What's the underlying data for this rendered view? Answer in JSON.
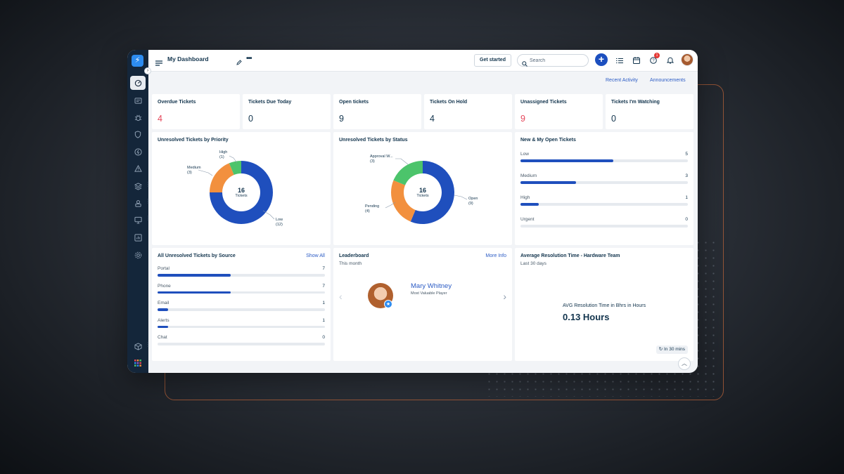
{
  "header": {
    "title": "My Dashboard",
    "get_started": "Get started",
    "search_placeholder": "Search",
    "plus": "+",
    "notification_count": "1"
  },
  "links": {
    "recent_activity": "Recent Activity",
    "announcements": "Announcements"
  },
  "summary_cards": [
    {
      "label": "Overdue Tickets",
      "value": "4",
      "highlight": true
    },
    {
      "label": "Tickets Due Today",
      "value": "0",
      "highlight": false
    },
    {
      "label": "Open tickets",
      "value": "9",
      "highlight": false
    },
    {
      "label": "Tickets On Hold",
      "value": "4",
      "highlight": false
    },
    {
      "label": "Unassigned Tickets",
      "value": "9",
      "highlight": true
    },
    {
      "label": "Tickets I'm Watching",
      "value": "0",
      "highlight": false
    }
  ],
  "priority_chart": {
    "title": "Unresolved Tickets by Priority",
    "center_value": "16",
    "center_label": "Tickets",
    "labels": {
      "high": "High\n(1)",
      "medium": "Medium\n(3)",
      "low": "Low\n(12)"
    }
  },
  "status_chart": {
    "title": "Unresolved Tickets by Status",
    "center_value": "16",
    "center_label": "Tickets",
    "labels": {
      "approval": "Approval W...\n(3)",
      "pending": "Pending\n(4)",
      "open": "Open\n(9)"
    }
  },
  "chart_data": [
    {
      "type": "pie",
      "title": "Unresolved Tickets by Priority",
      "categories": [
        "Low",
        "Medium",
        "High"
      ],
      "values": [
        12,
        3,
        1
      ],
      "colors": [
        "#1f4fbd",
        "#f2903e",
        "#4cc46b"
      ]
    },
    {
      "type": "pie",
      "title": "Unresolved Tickets by Status",
      "categories": [
        "Open",
        "Pending",
        "Approval W..."
      ],
      "values": [
        9,
        4,
        3
      ],
      "colors": [
        "#1f4fbd",
        "#f2903e",
        "#4cc46b"
      ]
    },
    {
      "type": "bar",
      "title": "New & My Open Tickets",
      "categories": [
        "Low",
        "Medium",
        "High",
        "Urgent"
      ],
      "values": [
        5,
        3,
        1,
        0
      ],
      "max": 9
    },
    {
      "type": "bar",
      "title": "All Unresolved Tickets by Source",
      "categories": [
        "Portal",
        "Phone",
        "Email",
        "Alerts",
        "Chat"
      ],
      "values": [
        7,
        7,
        1,
        1,
        0
      ],
      "max": 16
    }
  ],
  "new_open": {
    "title": "New & My Open Tickets",
    "rows": [
      {
        "label": "Low",
        "value": "5"
      },
      {
        "label": "Medium",
        "value": "3"
      },
      {
        "label": "High",
        "value": "1"
      },
      {
        "label": "Urgent",
        "value": "0"
      }
    ]
  },
  "source": {
    "title": "All Unresolved Tickets by Source",
    "link": "Show All",
    "rows": [
      {
        "label": "Portal",
        "value": "7"
      },
      {
        "label": "Phone",
        "value": "7"
      },
      {
        "label": "Email",
        "value": "1"
      },
      {
        "label": "Alerts",
        "value": "1"
      },
      {
        "label": "Chat",
        "value": "0"
      }
    ]
  },
  "leaderboard": {
    "title": "Leaderboard",
    "subtitle": "This month",
    "link": "More Info",
    "name": "Mary Whitney",
    "role": "Most Valuable Player"
  },
  "avg_resolution": {
    "title": "Average Resolution Time - Hardware Team",
    "subtitle": "Last 30 days",
    "label": "AVG Resolution Time in Bhrs in Hours",
    "value": "0.13 Hours",
    "refresh": "In 30 mins"
  },
  "colors": {
    "accent": "#1f4fbd",
    "sidebar": "#14263a",
    "alert_red": "#e5475b",
    "orange": "#f2903e",
    "green": "#4cc46b"
  }
}
